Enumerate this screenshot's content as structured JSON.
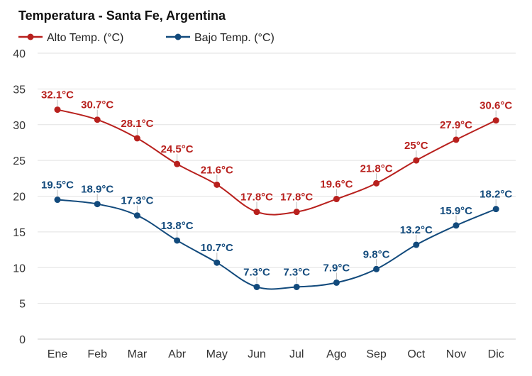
{
  "chart_data": {
    "type": "line",
    "title": "Temperatura - Santa Fe, Argentina",
    "categories": [
      "Ene",
      "Feb",
      "Mar",
      "Abr",
      "May",
      "Jun",
      "Jul",
      "Ago",
      "Sep",
      "Oct",
      "Nov",
      "Dic"
    ],
    "ylim": [
      0,
      40
    ],
    "yticks": [
      0,
      5,
      10,
      15,
      20,
      25,
      30,
      35,
      40
    ],
    "grid": true,
    "legend_position": "top-left",
    "series": [
      {
        "name": "Alto Temp. (°C)",
        "color": "#b8201d",
        "values": [
          32.1,
          30.7,
          28.1,
          24.5,
          21.6,
          17.8,
          17.8,
          19.6,
          21.8,
          25,
          27.9,
          30.6
        ],
        "labels": [
          "32.1°C",
          "30.7°C",
          "28.1°C",
          "24.5°C",
          "21.6°C",
          "17.8°C",
          "17.8°C",
          "19.6°C",
          "21.8°C",
          "25°C",
          "27.9°C",
          "30.6°C"
        ]
      },
      {
        "name": "Bajo Temp. (°C)",
        "color": "#124a7c",
        "values": [
          19.5,
          18.9,
          17.3,
          13.8,
          10.7,
          7.3,
          7.3,
          7.9,
          9.8,
          13.2,
          15.9,
          18.2
        ],
        "labels": [
          "19.5°C",
          "18.9°C",
          "17.3°C",
          "13.8°C",
          "10.7°C",
          "7.3°C",
          "7.3°C",
          "7.9°C",
          "9.8°C",
          "13.2°C",
          "15.9°C",
          "18.2°C"
        ]
      }
    ]
  }
}
